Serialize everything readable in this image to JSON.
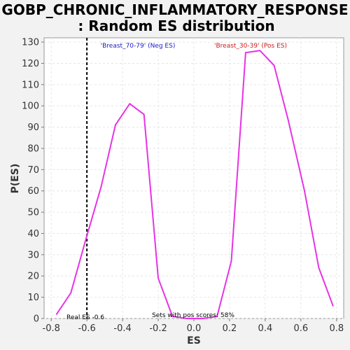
{
  "chart_data": {
    "type": "line",
    "title": "GOBP_CHRONIC_INFLAMMATORY_RESPONSE",
    "subtitle": ": Random ES distribution",
    "xlabel": "ES",
    "ylabel": "P(ES)",
    "xlim": [
      -0.84,
      0.84
    ],
    "ylim": [
      0,
      132
    ],
    "xticks": [
      -0.8,
      -0.6,
      -0.4,
      -0.2,
      0.0,
      0.2,
      0.4,
      0.6,
      0.8
    ],
    "xtick_labels": [
      "-0.8",
      "-0.6",
      "-0.4",
      "-0.2",
      "0.0",
      "0.2",
      "0.4",
      "0.6",
      "0.8"
    ],
    "yticks": [
      0,
      10,
      20,
      30,
      40,
      50,
      60,
      70,
      80,
      90,
      100,
      110,
      120,
      130
    ],
    "ytick_labels": [
      "0",
      "10",
      "20",
      "30",
      "40",
      "50",
      "60",
      "70",
      "80",
      "90",
      "100",
      "110",
      "120",
      "130"
    ],
    "grid": true,
    "series": [
      {
        "color": "#e633e6",
        "x": [
          -0.77,
          -0.69,
          -0.61,
          -0.52,
          -0.44,
          -0.36,
          -0.28,
          -0.2,
          -0.12,
          -0.04,
          0.05,
          0.13,
          0.21,
          0.29,
          0.37,
          0.45,
          0.53,
          0.62,
          0.7,
          0.78
        ],
        "y": [
          2,
          12,
          36,
          62,
          91,
          101,
          96,
          19,
          1,
          0,
          0,
          1,
          27,
          125,
          126,
          119,
          93,
          60,
          24,
          6
        ]
      }
    ],
    "real_es": {
      "x": -0.6,
      "label": "Real ES -0.6",
      "color": "#000000"
    },
    "annotations": {
      "neg_label": "'Breast_70-79' (Neg ES)",
      "neg_color": "#1a1acc",
      "pos_label": "'Breast_30-39' (Pos ES)",
      "pos_color": "#cc1a1a",
      "pos_scores_label": "Sets with pos scores: 58%"
    }
  }
}
